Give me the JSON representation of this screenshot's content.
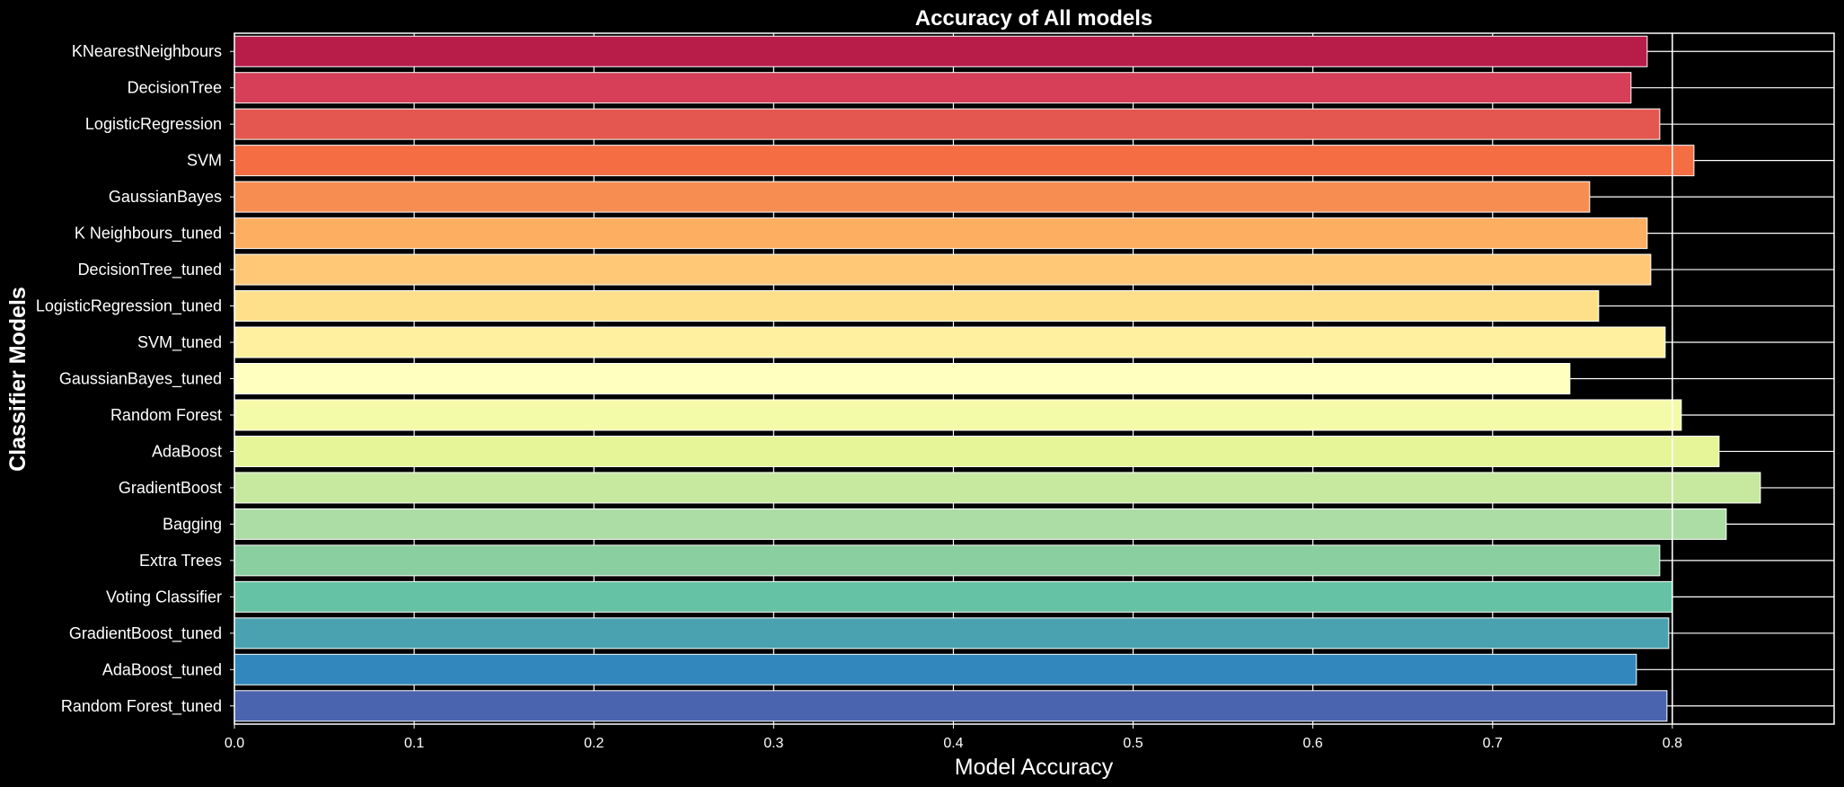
{
  "chart_data": {
    "type": "bar",
    "orientation": "horizontal",
    "title": "Accuracy of All models",
    "xlabel": "Model Accuracy",
    "ylabel": "Classifier Models",
    "xlim": [
      0.0,
      0.89
    ],
    "xticks": [
      "0.0",
      "0.1",
      "0.2",
      "0.3",
      "0.4",
      "0.5",
      "0.6",
      "0.7",
      "0.8"
    ],
    "xtick_values": [
      0.0,
      0.1,
      0.2,
      0.3,
      0.4,
      0.5,
      0.6,
      0.7,
      0.8
    ],
    "grid": true,
    "reference_line": 0.8,
    "categories": [
      "KNearestNeighbours",
      "DecisionTree",
      "LogisticRegression",
      "SVM",
      "GaussianBayes",
      "K Neighbours_tuned",
      "DecisionTree_tuned",
      "LogisticRegression_tuned",
      "SVM_tuned",
      "GaussianBayes_tuned",
      "Random Forest",
      "AdaBoost",
      "GradientBoost",
      "Bagging",
      "Extra Trees",
      "Voting Classifier",
      "GradientBoost_tuned",
      "AdaBoost_tuned",
      "Random Forest_tuned"
    ],
    "values": [
      0.786,
      0.777,
      0.793,
      0.812,
      0.754,
      0.786,
      0.788,
      0.759,
      0.796,
      0.743,
      0.805,
      0.826,
      0.849,
      0.83,
      0.793,
      0.8,
      0.798,
      0.78,
      0.797
    ],
    "colors": [
      "#b81d4a",
      "#d63f57",
      "#e45750",
      "#f46d43",
      "#f88d52",
      "#fdae61",
      "#fec877",
      "#fee08b",
      "#fff0a0",
      "#ffffbf",
      "#f4fba8",
      "#e6f598",
      "#c7e89f",
      "#abdda4",
      "#89cfa0",
      "#66c2a5",
      "#4aa2b0",
      "#3288bd",
      "#4a64b0"
    ]
  }
}
